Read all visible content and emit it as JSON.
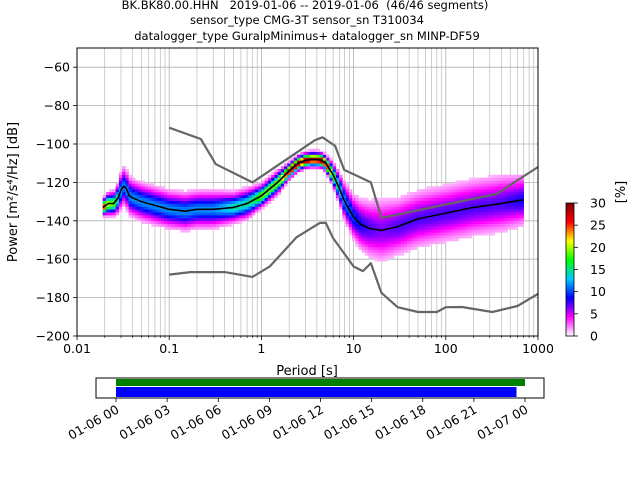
{
  "title_lines": [
    "BK.BK80.00.HHN   2019-01-06 -- 2019-01-06  (46/46 segments)",
    "sensor_type CMG-3T sensor_sn T310034",
    "datalogger_type GuralpMinimus+ datalogger_sn MINP-DF59"
  ],
  "chart_data": [
    {
      "type": "heatmap",
      "title": "BK.BK80.00.HHN   2019-01-06 -- 2019-01-06  (46/46 segments)",
      "xlabel": "Period [s]",
      "ylabel": "Power [m²/s⁴/Hz] [dB]",
      "x_scale": "log",
      "xlim": [
        0.01,
        1000
      ],
      "ylim": [
        -200,
        -50
      ],
      "x_ticks": [
        0.01,
        0.1,
        1,
        10,
        100,
        1000
      ],
      "x_tick_labels": [
        "0.01",
        "0.1",
        "1",
        "10",
        "100",
        "1000"
      ],
      "y_ticks": [
        -200,
        -180,
        -160,
        -140,
        -120,
        -100,
        -80,
        -60
      ],
      "y_tick_labels": [
        "−200",
        "−180",
        "−160",
        "−140",
        "−120",
        "−100",
        "−80",
        "−60"
      ],
      "grid": true,
      "colorbar": {
        "label": "[%]",
        "range": [
          0,
          30
        ],
        "ticks": [
          0,
          5,
          10,
          15,
          20,
          25,
          30
        ],
        "tick_labels": [
          "0",
          "5",
          "10",
          "15",
          "20",
          "25",
          "30"
        ],
        "colors": [
          "#ffffff",
          "#ff00ff",
          "#0000ff",
          "#00c8ff",
          "#00ff00",
          "#ffff00",
          "#ff0000",
          "#800000"
        ]
      },
      "series": [
        {
          "name": "high noise model",
          "color": "#666666",
          "x": [
            0.1,
            0.22,
            0.32,
            0.8,
            3.8,
            4.6,
            6.3,
            7.9,
            15.4,
            20,
            354.8,
            1000
          ],
          "y": [
            -91.5,
            -97.4,
            -110.5,
            -120,
            -98,
            -96.5,
            -101,
            -113.5,
            -120,
            -138.5,
            -126,
            -112
          ]
        },
        {
          "name": "low noise model",
          "color": "#666666",
          "x": [
            0.1,
            0.17,
            0.4,
            0.8,
            1.24,
            2.4,
            4.3,
            5.0,
            6.0,
            10,
            12.6,
            15.4,
            20,
            30,
            50,
            80,
            100,
            150,
            320,
            600,
            1000
          ],
          "y": [
            -168,
            -166.7,
            -166.7,
            -169.2,
            -163.7,
            -148.6,
            -141.1,
            -141.1,
            -149,
            -163.8,
            -166.2,
            -162.1,
            -177.5,
            -185,
            -187.5,
            -187.5,
            -185,
            -184.9,
            -187.5,
            -184.4,
            -178
          ]
        },
        {
          "name": "mode",
          "color": "#000000",
          "x": [
            0.019,
            0.022,
            0.025,
            0.028,
            0.03,
            0.032,
            0.034,
            0.037,
            0.04,
            0.05,
            0.07,
            0.1,
            0.15,
            0.2,
            0.3,
            0.5,
            0.7,
            1.0,
            1.5,
            2.0,
            2.5,
            3.0,
            3.5,
            4.0,
            4.5,
            5.0,
            6.0,
            7.0,
            8.0,
            10,
            12,
            15,
            20,
            30,
            50,
            100,
            200,
            400,
            700
          ],
          "y": [
            -133,
            -131,
            -131,
            -128,
            -124,
            -122,
            -123,
            -127,
            -128,
            -130,
            -132,
            -134,
            -135,
            -134,
            -134,
            -133,
            -131,
            -127,
            -120,
            -114,
            -110,
            -108.5,
            -108,
            -108,
            -108.5,
            -110,
            -116,
            -123,
            -130,
            -138,
            -142,
            -144,
            -145,
            -143,
            -139,
            -136,
            -133,
            -131,
            -129
          ]
        }
      ],
      "density_mean": {
        "x": [
          0.019,
          0.022,
          0.025,
          0.028,
          0.03,
          0.032,
          0.034,
          0.037,
          0.04,
          0.05,
          0.07,
          0.1,
          0.15,
          0.2,
          0.3,
          0.5,
          0.7,
          1.0,
          1.5,
          2.0,
          2.5,
          3.0,
          3.5,
          4.0,
          4.5,
          5.0,
          6.0,
          7.0,
          8.0,
          10,
          12,
          15,
          20,
          30,
          50,
          100,
          200,
          400,
          700
        ],
        "y": [
          -133,
          -131,
          -131,
          -128,
          -124,
          -122,
          -123,
          -127,
          -128,
          -130,
          -132,
          -134,
          -135,
          -134,
          -134,
          -133,
          -131,
          -127,
          -120,
          -114,
          -110,
          -108.5,
          -108,
          -108,
          -108.5,
          -110,
          -116,
          -123,
          -130,
          -138,
          -142,
          -144,
          -145,
          -143,
          -139,
          -136,
          -133,
          -131,
          -129
        ],
        "spread_db": [
          2,
          3,
          3,
          4,
          5,
          5,
          5,
          5,
          5,
          5,
          5,
          5,
          5,
          5,
          5,
          4,
          4,
          3,
          3,
          2,
          2,
          2,
          2,
          2,
          2,
          2,
          3,
          4,
          5,
          6,
          7,
          8,
          9,
          8,
          8,
          8,
          8,
          8,
          7
        ]
      }
    },
    {
      "type": "timeline",
      "xlim": [
        "01-06 00",
        "01-07 00"
      ],
      "tick_labels": [
        "01-06 00",
        "01-06 03",
        "01-06 06",
        "01-06 09",
        "01-06 12",
        "01-06 15",
        "01-06 18",
        "01-06 21",
        "01-07 00"
      ],
      "bars": [
        {
          "name": "data coverage",
          "color": "#008000",
          "start_hours": 0,
          "end_hours": 24.0
        },
        {
          "name": "psd segments",
          "color": "#0000ff",
          "start_hours": 0,
          "end_hours": 23.5
        }
      ]
    }
  ]
}
